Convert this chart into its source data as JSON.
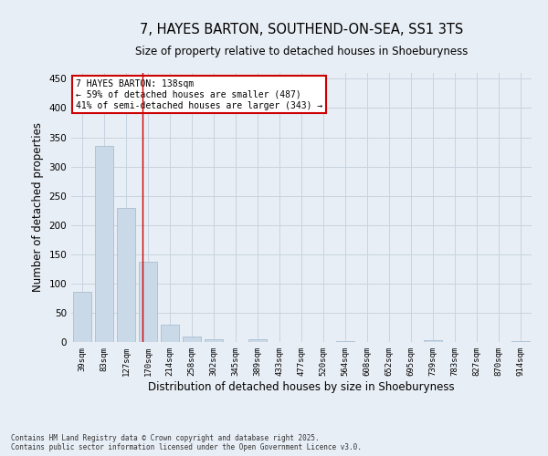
{
  "title1": "7, HAYES BARTON, SOUTHEND-ON-SEA, SS1 3TS",
  "title2": "Size of property relative to detached houses in Shoeburyness",
  "xlabel": "Distribution of detached houses by size in Shoeburyness",
  "ylabel": "Number of detached properties",
  "categories": [
    "39sqm",
    "83sqm",
    "127sqm",
    "170sqm",
    "214sqm",
    "258sqm",
    "302sqm",
    "345sqm",
    "389sqm",
    "433sqm",
    "477sqm",
    "520sqm",
    "564sqm",
    "608sqm",
    "652sqm",
    "695sqm",
    "739sqm",
    "783sqm",
    "827sqm",
    "870sqm",
    "914sqm"
  ],
  "values": [
    85,
    335,
    230,
    138,
    30,
    10,
    5,
    0,
    5,
    0,
    0,
    0,
    1,
    0,
    0,
    0,
    3,
    0,
    0,
    0,
    2
  ],
  "bar_color": "#c9d9e8",
  "bar_edge_color": "#aabdd0",
  "grid_color": "#c8d4e0",
  "bg_color": "#e8eef5",
  "red_line_index": 2.75,
  "annotation_line1": "7 HAYES BARTON: 138sqm",
  "annotation_line2": "← 59% of detached houses are smaller (487)",
  "annotation_line3": "41% of semi-detached houses are larger (343) →",
  "annotation_box_color": "#ffffff",
  "annotation_border_color": "#cc0000",
  "ylim": [
    0,
    460
  ],
  "yticks": [
    0,
    50,
    100,
    150,
    200,
    250,
    300,
    350,
    400,
    450
  ],
  "footer1": "Contains HM Land Registry data © Crown copyright and database right 2025.",
  "footer2": "Contains public sector information licensed under the Open Government Licence v3.0."
}
